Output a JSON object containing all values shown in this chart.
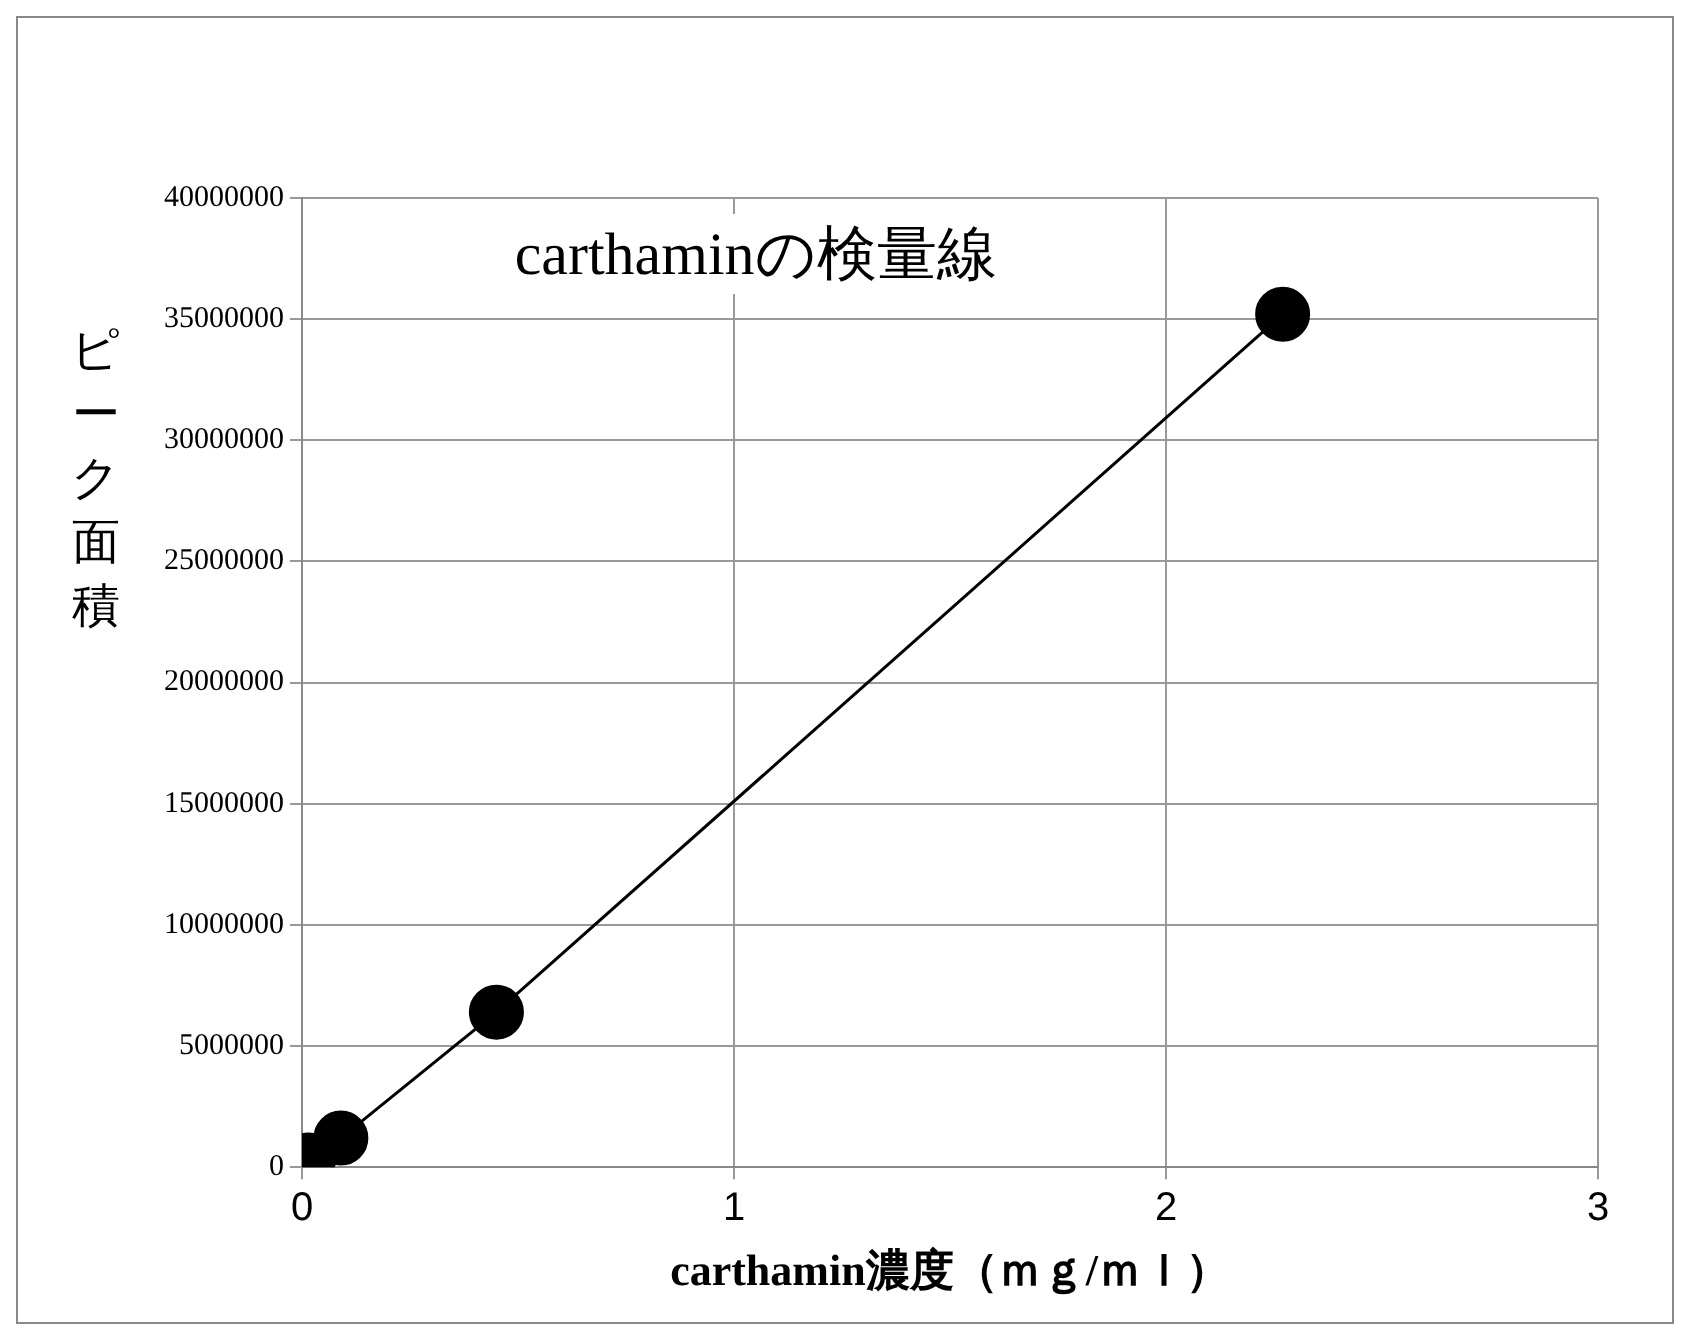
{
  "chart_data": {
    "type": "line",
    "title": "carthaminの検量線",
    "xlabel": "carthamin濃度（ｍｇ/ｍｌ）",
    "ylabel": "ピーク面積",
    "series": [
      {
        "color": "#000000",
        "x": [
          0.015,
          0.09,
          0.45,
          2.27
        ],
        "values": [
          300000,
          1200000,
          6400000,
          35200000
        ]
      }
    ],
    "xlim": [
      0,
      3
    ],
    "xticks": [
      0,
      1,
      2,
      3
    ],
    "ylim": [
      0,
      40000000
    ],
    "yticks": [
      0,
      5000000,
      10000000,
      15000000,
      20000000,
      25000000,
      30000000,
      35000000,
      40000000
    ],
    "grid": true,
    "legend": false,
    "marker": "circle",
    "line_style": "solid"
  }
}
